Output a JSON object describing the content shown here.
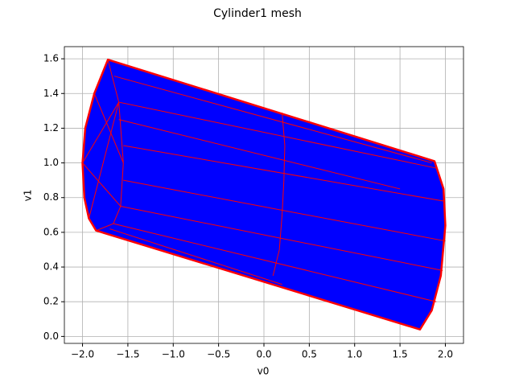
{
  "chart_data": {
    "type": "mesh",
    "title": "Cylinder1 mesh",
    "x_label": "v0",
    "y_label": "v1",
    "fill_color": "#0000ff",
    "edge_color": "#ff0000",
    "grid": true,
    "xlim": [
      -2.2,
      2.2
    ],
    "ylim": [
      -0.04,
      1.67
    ],
    "xticks": [
      {
        "value": -2,
        "label": "−2.0"
      },
      {
        "value": -1.5,
        "label": "−1.5"
      },
      {
        "value": -1,
        "label": "−1.0"
      },
      {
        "value": -0.5,
        "label": "−0.5"
      },
      {
        "value": 0,
        "label": "0.0"
      },
      0.5,
      {
        "value": 1,
        "label": "1.0"
      },
      1.5,
      {
        "value": 2,
        "label": "2.0"
      }
    ],
    "yticks": [
      {
        "value": 0,
        "label": "0.0"
      },
      0.2,
      0.4,
      0.6,
      0.8,
      {
        "value": 1,
        "label": "1.0"
      },
      1.2,
      1.4,
      1.6
    ],
    "x": [
      -1.72,
      -1.87,
      -1.97,
      -2.0,
      -1.98,
      -1.93,
      -1.85,
      1.72,
      1.85,
      1.95,
      2.0,
      1.98,
      1.88
    ],
    "y": [
      1.595,
      1.4,
      1.2,
      1.0,
      0.8,
      0.68,
      0.61,
      0.04,
      0.15,
      0.35,
      0.64,
      0.85,
      1.01
    ],
    "segments": [
      {
        "x": [
          -1.72,
          -1.6,
          -1.55,
          -1.58,
          -1.66,
          -1.85
        ],
        "y": [
          1.595,
          1.35,
          1.0,
          0.75,
          0.65,
          0.61
        ]
      },
      {
        "x": [
          -1.6,
          1.9
        ],
        "y": [
          1.35,
          0.97
        ]
      },
      {
        "x": [
          -1.55,
          1.98
        ],
        "y": [
          1.1,
          0.78
        ]
      },
      {
        "x": [
          -1.55,
          2.0
        ],
        "y": [
          0.9,
          0.55
        ]
      },
      {
        "x": [
          -1.58,
          1.97
        ],
        "y": [
          0.75,
          0.38
        ]
      },
      {
        "x": [
          -1.66,
          1.9
        ],
        "y": [
          0.65,
          0.2
        ]
      },
      {
        "x": [
          -1.65,
          1.85
        ],
        "y": [
          1.5,
          1.0
        ]
      },
      {
        "x": [
          -1.6,
          1.5
        ],
        "y": [
          1.25,
          0.85
        ]
      },
      {
        "x": [
          -1.7,
          0.2
        ],
        "y": [
          0.62,
          0.3
        ]
      },
      {
        "x": [
          0.2,
          0.23,
          0.22,
          0.2,
          0.17,
          0.1
        ],
        "y": [
          1.29,
          1.1,
          0.9,
          0.7,
          0.5,
          0.35
        ]
      },
      {
        "x": [
          -2.0,
          -1.6
        ],
        "y": [
          1.0,
          1.35
        ]
      },
      {
        "x": [
          -2.0,
          -1.58
        ],
        "y": [
          1.0,
          0.75
        ]
      },
      {
        "x": [
          -1.87,
          -1.55
        ],
        "y": [
          1.4,
          1.0
        ]
      },
      {
        "x": [
          -1.93,
          -1.6
        ],
        "y": [
          0.68,
          1.35
        ]
      }
    ]
  }
}
